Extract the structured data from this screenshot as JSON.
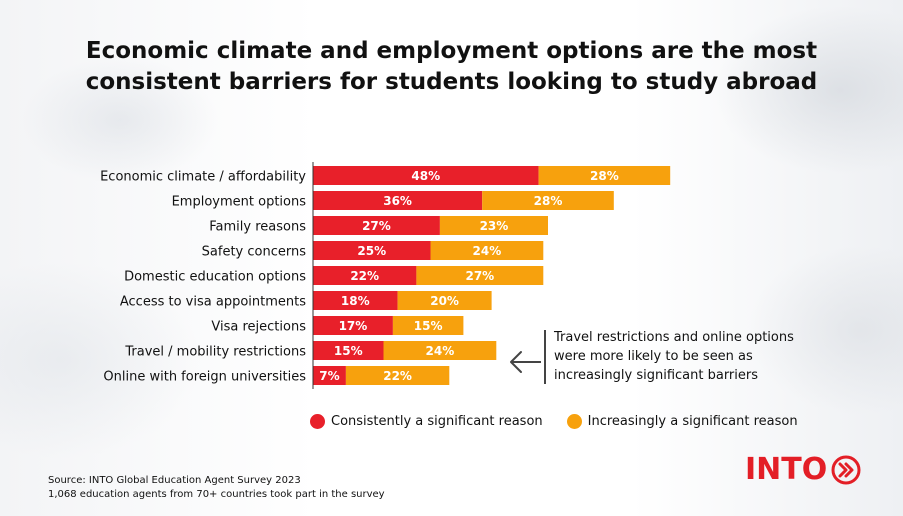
{
  "title": {
    "line1": "Economic climate and employment options are the most",
    "line2": "consistent barriers for students looking to study abroad"
  },
  "colors": {
    "consistent": "#e8202a",
    "increasing": "#f7a10d"
  },
  "chart_data": {
    "type": "bar",
    "orientation": "horizontal",
    "stacked": true,
    "categories": [
      "Economic climate / affordability",
      "Employment options",
      "Family reasons",
      "Safety concerns",
      "Domestic education options",
      "Access to visa appointments",
      "Visa rejections",
      "Travel / mobility restrictions",
      "Online with foreign universities"
    ],
    "series": [
      {
        "name": "Consistently a significant reason",
        "values": [
          48,
          36,
          27,
          25,
          22,
          18,
          17,
          15,
          7
        ]
      },
      {
        "name": "Increasingly a significant reason",
        "values": [
          28,
          28,
          23,
          24,
          27,
          20,
          15,
          24,
          22
        ]
      }
    ],
    "value_suffix": "%",
    "legend": "bottom",
    "grid": false
  },
  "annotation": "Travel restrictions and online options were more likely to be seen as increasingly significant barriers",
  "legend": {
    "consistent": "Consistently a significant reason",
    "increasing": "Increasingly a significant reason"
  },
  "source": {
    "line1": "Source: INTO Global Education Agent Survey 2023",
    "line2": "1,068 education agents from 70+ countries took part in the survey"
  },
  "logo": {
    "text": "INTO",
    "icon": "double-chevron-icon"
  }
}
